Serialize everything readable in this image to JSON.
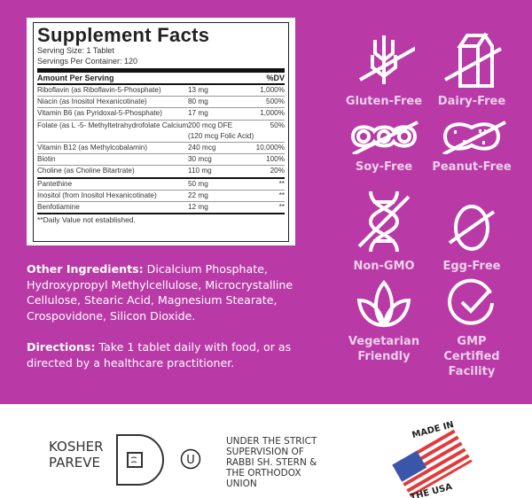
{
  "colors": {
    "brand_purple": "#b93aa6",
    "badge_text": "#ecd0ea"
  },
  "facts": {
    "title": "Supplement Facts",
    "serving_size": "Serving Size: 1 Tablet",
    "servings_per_container": "Servings Per Container: 120",
    "header_left": "Amount Per Serving",
    "header_right": "%DV",
    "rows": [
      {
        "name": "Riboflavin (as Riboflavin-5-Phosphate)",
        "amount": "13 mg",
        "dv": "1,000%"
      },
      {
        "name": "Niacin (as Inositol Hexanicotinate)",
        "amount": "80 mg",
        "dv": "500%"
      },
      {
        "name": "Vitamin B6 (as Pyridoxal-5-Phosphate)",
        "amount": "17 mg",
        "dv": "1,000%"
      },
      {
        "name": "Folate (as L -5- Methyltetrahydrofolate Calcium)",
        "amount": "200 mcg DFE",
        "amount2": "(120 mcg Folic Acid)",
        "dv": "50%"
      },
      {
        "name": "Vitamin B12 (as Methylcobalamin)",
        "amount": "240 mcg",
        "dv": "10,000%"
      },
      {
        "name": "Biotin",
        "amount": "30 mcg",
        "dv": "100%"
      },
      {
        "name": "Choline (as Choline Bitartrate)",
        "amount": "110 mg",
        "dv": "20%"
      },
      {
        "name": "Pantethine",
        "amount": "50 mg",
        "dv": "**"
      },
      {
        "name": "Inositol (from Inositol Hexanicotinate)",
        "amount": "22 mg",
        "dv": "**"
      },
      {
        "name": "Benfotiamine",
        "amount": "12 mg",
        "dv": "**"
      }
    ],
    "footnote": "**Daily Value not established."
  },
  "other_ingredients": {
    "label": "Other Ingredients:",
    "text": " Dicalcium Phosphate, Hydroxypropyl Methylcellulose, Microcrystalline Cellulose, Stearic Acid, Magnesium Stearate, Crospovidone, Silicon Dioxide."
  },
  "directions": {
    "label": "Directions:",
    "text": " Take 1 tablet daily with food, or as directed by a healthcare practitioner."
  },
  "badges": [
    {
      "label": "Gluten-Free",
      "icon": "wheat-crossed-icon"
    },
    {
      "label": "Dairy-Free",
      "icon": "milk-carton-crossed-icon"
    },
    {
      "label": "Soy-Free",
      "icon": "soybean-crossed-icon"
    },
    {
      "label": "Peanut-Free",
      "icon": "peanut-crossed-icon"
    },
    {
      "label": "Non-GMO",
      "icon": "dna-crossed-icon"
    },
    {
      "label": "Egg-Free",
      "icon": "egg-crossed-icon"
    },
    {
      "label": "Vegetarian Friendly",
      "icon": "leaf-icon"
    },
    {
      "label": "GMP Certified Facility",
      "icon": "check-circle-icon"
    }
  ],
  "certification": {
    "kosher_line1": "KOSHER",
    "kosher_line2": "PAREVE",
    "ou_symbol": "U",
    "supervision": [
      "UNDER THE STRICT",
      "SUPERVISION OF",
      "RABBI SH. STERN &",
      "THE ORTHODOX",
      "UNION"
    ],
    "made_in": "MADE IN",
    "the_usa": "THE USA"
  }
}
